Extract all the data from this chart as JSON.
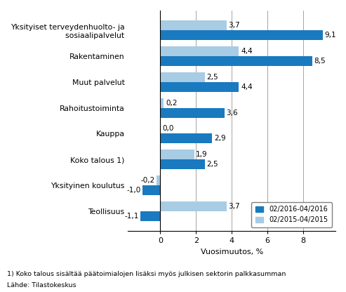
{
  "categories": [
    "Yksityiset terveydenhuolto- ja\n  sosiaalipalvelut",
    "Rakentaminen",
    "Muut palvelut",
    "Rahoitustoiminta",
    "Kauppa",
    "Koko talous 1)",
    "Yksityinen koulutus",
    "Teollisuus"
  ],
  "series1_label": "02/2016-04/2016",
  "series2_label": "02/2015-04/2015",
  "series1_values": [
    9.1,
    8.5,
    4.4,
    3.6,
    2.9,
    2.5,
    -1.0,
    -1.1
  ],
  "series2_values": [
    3.7,
    4.4,
    2.5,
    0.2,
    0.0,
    1.9,
    -0.2,
    3.7
  ],
  "color1": "#1a7abf",
  "color2": "#a8cce4",
  "xlabel": "Vuosimuutos, %",
  "xlim": [
    -1.8,
    9.8
  ],
  "xticks": [
    0,
    2,
    4,
    6,
    8
  ],
  "footnote1": "1) Koko talous sisältää päätoimialojen lisäksi myös julkisen sektorin palkkasumman",
  "footnote2": "Lähde: Tilastokeskus",
  "bar_height": 0.38,
  "background_color": "#ffffff"
}
